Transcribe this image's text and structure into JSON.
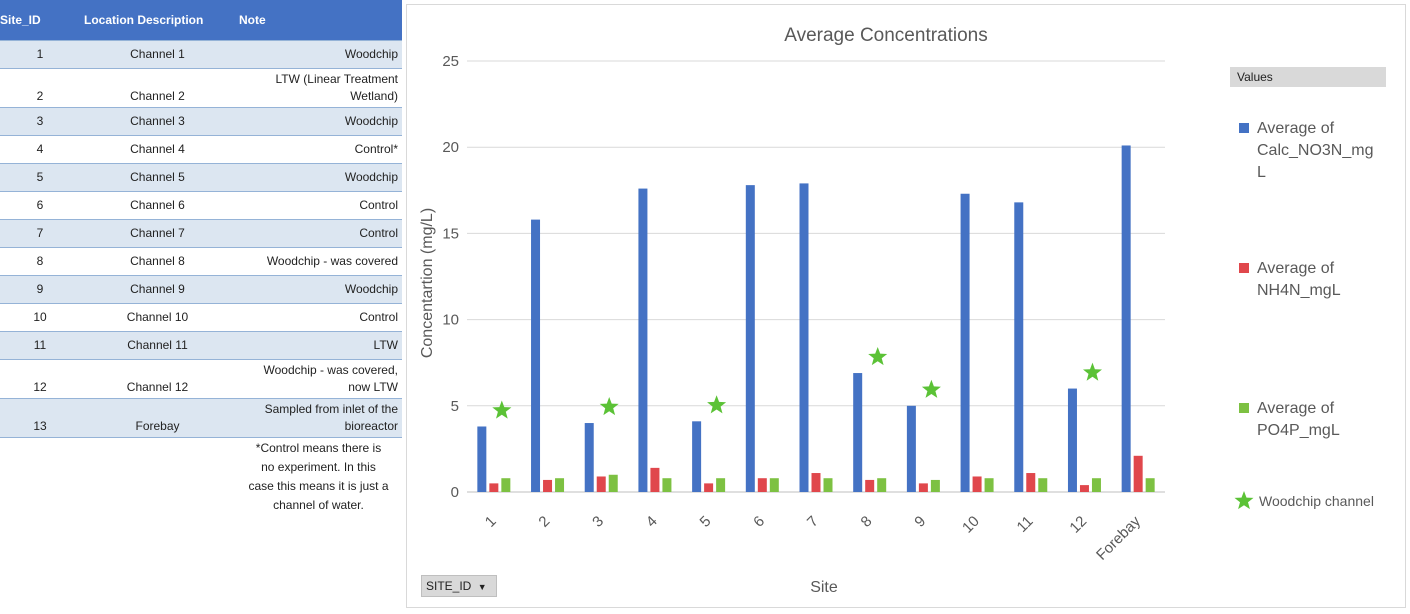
{
  "sheet": {
    "headers": [
      "Site_ID",
      "Location Description",
      "Note"
    ],
    "rows": [
      {
        "id": "1",
        "loc": "Channel 1",
        "note": [
          "Woodchip"
        ]
      },
      {
        "id": "2",
        "loc": "Channel 2",
        "note": [
          "LTW (Linear Treatment",
          "Wetland)"
        ]
      },
      {
        "id": "3",
        "loc": "Channel 3",
        "note": [
          "Woodchip"
        ]
      },
      {
        "id": "4",
        "loc": "Channel 4",
        "note": [
          "Control*"
        ]
      },
      {
        "id": "5",
        "loc": "Channel 5",
        "note": [
          "Woodchip"
        ]
      },
      {
        "id": "6",
        "loc": "Channel 6",
        "note": [
          "Control"
        ]
      },
      {
        "id": "7",
        "loc": "Channel 7",
        "note": [
          "Control"
        ]
      },
      {
        "id": "8",
        "loc": "Channel 8",
        "note": [
          "Woodchip - was covered"
        ]
      },
      {
        "id": "9",
        "loc": "Channel 9",
        "note": [
          "Woodchip"
        ]
      },
      {
        "id": "10",
        "loc": "Channel 10",
        "note": [
          "Control"
        ]
      },
      {
        "id": "11",
        "loc": "Channel 11",
        "note": [
          "LTW"
        ]
      },
      {
        "id": "12",
        "loc": "Channel 12",
        "note": [
          "Woodchip - was covered,",
          "now LTW"
        ]
      },
      {
        "id": "13",
        "loc": "Forebay",
        "note": [
          "Sampled from inlet of the",
          "bioreactor"
        ]
      }
    ],
    "footnote": [
      "*Control means there is",
      "no experiment. In this",
      "case this means it is just a",
      "channel of water."
    ]
  },
  "filter": {
    "label": "SITE_ID",
    "arrow": "▼"
  },
  "legend": {
    "header": "Values",
    "woodchip_label": "Woodchip channel"
  },
  "chart_data": {
    "type": "bar",
    "title": "Average Concentrations",
    "xlabel": "Site",
    "ylabel": "Concentartion (mg/L)",
    "ylim": [
      0,
      25
    ],
    "yticks": [
      0,
      5,
      10,
      15,
      20,
      25
    ],
    "grid": true,
    "legend_position": "right",
    "categories": [
      "1",
      "2",
      "3",
      "4",
      "5",
      "6",
      "7",
      "8",
      "9",
      "10",
      "11",
      "12",
      "Forebay"
    ],
    "series": [
      {
        "name": "Average of Calc_NO3N_mgL",
        "legend_lines": [
          "Average of",
          "Calc_NO3N_mg",
          "L"
        ],
        "color": "#4472c4",
        "values": [
          3.8,
          15.8,
          4.0,
          17.6,
          4.1,
          17.8,
          17.9,
          6.9,
          5.0,
          17.3,
          16.8,
          6.0,
          20.1
        ]
      },
      {
        "name": "Average of NH4N_mgL",
        "legend_lines": [
          "Average of",
          "NH4N_mgL"
        ],
        "color": "#e0474c",
        "values": [
          0.5,
          0.7,
          0.9,
          1.4,
          0.5,
          0.8,
          1.1,
          0.7,
          0.5,
          0.9,
          1.1,
          0.4,
          2.1
        ]
      },
      {
        "name": "Average of PO4P_mgL",
        "legend_lines": [
          "Average of",
          "PO4P_mgL"
        ],
        "color": "#7dc142",
        "values": [
          0.8,
          0.8,
          1.0,
          0.8,
          0.8,
          0.8,
          0.8,
          0.8,
          0.7,
          0.8,
          0.8,
          0.8,
          0.8
        ]
      }
    ],
    "annotation": {
      "label": "Woodchip channel",
      "marker": "star",
      "color": "#5bc236",
      "sites": [
        "1",
        "3",
        "5",
        "8",
        "9",
        "12"
      ]
    }
  }
}
